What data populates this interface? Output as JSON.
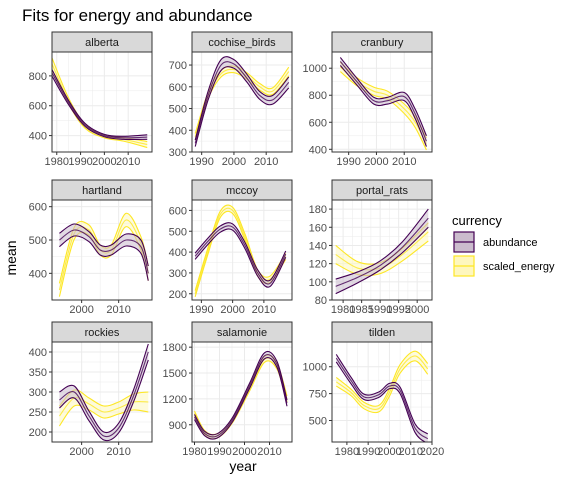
{
  "chart_data": {
    "type": "line",
    "title": "Fits for energy and abundance",
    "xlabel": "year",
    "ylabel": "mean",
    "grid": true,
    "legend": {
      "title": "currency",
      "position": "right",
      "entries": [
        {
          "label": "abundance",
          "color": "#440154",
          "fill": "#cbbccd"
        },
        {
          "label": "scaled_energy",
          "color": "#FDE725",
          "fill": "#fef7be"
        }
      ]
    },
    "panels": [
      {
        "name": "alberta",
        "xlim": [
          1978,
          2020
        ],
        "ylim": [
          290,
          960
        ],
        "xticks": [
          1980,
          1990,
          2000,
          2010
        ],
        "yticks": [
          400,
          600,
          800
        ],
        "series": [
          {
            "name": "abundance",
            "x": [
              1978,
              1985,
              1992,
              2000,
              2008,
              2018
            ],
            "mean": [
              820,
              620,
              470,
              400,
              385,
              390
            ],
            "band": [
              22,
              14,
              10,
              8,
              10,
              15
            ]
          },
          {
            "name": "scaled_energy",
            "x": [
              1978,
              1985,
              1992,
              2000,
              2008,
              2018
            ],
            "mean": [
              880,
              630,
              460,
              395,
              375,
              340
            ],
            "band": [
              40,
              20,
              12,
              10,
              12,
              20
            ]
          }
        ]
      },
      {
        "name": "cochise_birds",
        "xlim": [
          1987,
          2018
        ],
        "ylim": [
          300,
          760
        ],
        "xticks": [
          1990,
          2000,
          2010
        ],
        "yticks": [
          300,
          400,
          500,
          600,
          700
        ],
        "series": [
          {
            "name": "abundance",
            "x": [
              1988,
              1992,
              1996,
              2000,
              2004,
              2008,
              2012,
              2017
            ],
            "mean": [
              340,
              560,
              700,
              705,
              640,
              560,
              540,
              620
            ],
            "band": [
              15,
              20,
              25,
              20,
              18,
              18,
              20,
              25
            ]
          },
          {
            "name": "scaled_energy",
            "x": [
              1988,
              1992,
              1996,
              2000,
              2004,
              2008,
              2012,
              2017
            ],
            "mean": [
              370,
              560,
              660,
              680,
              650,
              600,
              580,
              670
            ],
            "band": [
              15,
              15,
              15,
              15,
              15,
              15,
              15,
              20
            ]
          }
        ]
      },
      {
        "name": "cranbury",
        "xlim": [
          1984,
          2020
        ],
        "ylim": [
          380,
          1120
        ],
        "xticks": [
          1990,
          2000,
          2010
        ],
        "yticks": [
          400,
          600,
          800,
          1000
        ],
        "series": [
          {
            "name": "abundance",
            "x": [
              1987,
              1993,
              1999,
              2004,
              2010,
              2014,
              2018
            ],
            "mean": [
              1050,
              900,
              760,
              760,
              790,
              660,
              460
            ],
            "band": [
              30,
              25,
              25,
              25,
              30,
              35,
              40
            ]
          },
          {
            "name": "scaled_energy",
            "x": [
              1987,
              1993,
              1999,
              2004,
              2010,
              2014,
              2018
            ],
            "mean": [
              1010,
              900,
              830,
              800,
              700,
              600,
              440
            ],
            "band": [
              35,
              30,
              30,
              30,
              35,
              40,
              45
            ]
          }
        ]
      },
      {
        "name": "hartland",
        "xlim": [
          1992,
          2019
        ],
        "ylim": [
          320,
          620
        ],
        "xticks": [
          2000,
          2010
        ],
        "yticks": [
          400,
          500,
          600
        ],
        "series": [
          {
            "name": "abundance",
            "x": [
              1994,
              1998,
              2002,
              2005,
              2008,
              2012,
              2016,
              2018
            ],
            "mean": [
              500,
              530,
              510,
              470,
              470,
              500,
              480,
              400
            ],
            "band": [
              20,
              18,
              15,
              15,
              15,
              18,
              20,
              22
            ]
          },
          {
            "name": "scaled_energy",
            "x": [
              1994,
              1998,
              2002,
              2005,
              2008,
              2012,
              2016,
              2018
            ],
            "mean": [
              350,
              520,
              530,
              470,
              470,
              560,
              490,
              400
            ],
            "band": [
              20,
              18,
              15,
              15,
              15,
              20,
              20,
              22
            ]
          }
        ]
      },
      {
        "name": "mccoy",
        "xlim": [
          1987,
          2019
        ],
        "ylim": [
          170,
          650
        ],
        "xticks": [
          1990,
          2000,
          2010
        ],
        "yticks": [
          200,
          300,
          400,
          500,
          600
        ],
        "series": [
          {
            "name": "abundance",
            "x": [
              1988,
              1992,
              1996,
              2000,
              2004,
              2008,
              2012,
              2017
            ],
            "mean": [
              380,
              450,
              510,
              520,
              430,
              300,
              250,
              390
            ],
            "band": [
              15,
              15,
              15,
              15,
              15,
              15,
              15,
              15
            ]
          },
          {
            "name": "scaled_energy",
            "x": [
              1988,
              1992,
              1996,
              2000,
              2004,
              2008,
              2012,
              2017
            ],
            "mean": [
              200,
              400,
              580,
              600,
              470,
              300,
              270,
              380
            ],
            "band": [
              15,
              15,
              15,
              15,
              15,
              15,
              15,
              15
            ]
          }
        ]
      },
      {
        "name": "portal_rats",
        "xlim": [
          1977,
          2004
        ],
        "ylim": [
          80,
          190
        ],
        "xticks": [
          1980,
          1985,
          1990,
          1995,
          2000
        ],
        "yticks": [
          80,
          100,
          120,
          140,
          160,
          180
        ],
        "series": [
          {
            "name": "abundance",
            "x": [
              1978,
              1984,
              1990,
              1996,
              2003
            ],
            "mean": [
              95,
              105,
              118,
              138,
              170
            ],
            "band": [
              8,
              6,
              5,
              6,
              10
            ]
          },
          {
            "name": "scaled_energy",
            "x": [
              1978,
              1984,
              1990,
              1996,
              2003
            ],
            "mean": [
              130,
              115,
              115,
              130,
              155
            ],
            "band": [
              10,
              7,
              6,
              7,
              10
            ]
          }
        ]
      },
      {
        "name": "rockies",
        "xlim": [
          1992,
          2019
        ],
        "ylim": [
          175,
          425
        ],
        "xticks": [
          2000,
          2010
        ],
        "yticks": [
          200,
          250,
          300,
          350,
          400
        ],
        "series": [
          {
            "name": "abundance",
            "x": [
              1994,
              1998,
              2002,
              2006,
              2010,
              2014,
              2018
            ],
            "mean": [
              280,
              300,
              240,
              190,
              210,
              290,
              400
            ],
            "band": [
              20,
              15,
              12,
              10,
              12,
              15,
              20
            ]
          },
          {
            "name": "scaled_energy",
            "x": [
              1994,
              1998,
              2002,
              2006,
              2010,
              2014,
              2018
            ],
            "mean": [
              240,
              285,
              270,
              250,
              260,
              275,
              275
            ],
            "band": [
              25,
              20,
              15,
              15,
              15,
              20,
              25
            ]
          }
        ]
      },
      {
        "name": "salamonie",
        "xlim": [
          1979,
          2019
        ],
        "ylim": [
          700,
          1860
        ],
        "xticks": [
          1980,
          1990,
          2000,
          2010
        ],
        "yticks": [
          900,
          1200,
          1500,
          1800
        ],
        "series": [
          {
            "name": "abundance",
            "x": [
              1980,
              1984,
              1989,
              1995,
              2002,
              2008,
              2013,
              2017
            ],
            "mean": [
              990,
              800,
              770,
              950,
              1350,
              1700,
              1600,
              1150
            ],
            "band": [
              30,
              25,
              25,
              25,
              30,
              35,
              35,
              35
            ]
          },
          {
            "name": "scaled_energy",
            "x": [
              1980,
              1984,
              1989,
              1995,
              2002,
              2008,
              2013,
              2017
            ],
            "mean": [
              1030,
              810,
              770,
              940,
              1320,
              1660,
              1580,
              1200
            ],
            "band": [
              30,
              25,
              25,
              25,
              30,
              35,
              35,
              35
            ]
          }
        ]
      },
      {
        "name": "tilden",
        "xlim": [
          1973,
          2020
        ],
        "ylim": [
          300,
          1230
        ],
        "xticks": [
          1980,
          1990,
          2000,
          2010,
          2020
        ],
        "yticks": [
          500,
          750,
          1000
        ],
        "series": [
          {
            "name": "abundance",
            "x": [
              1975,
              1982,
              1988,
              1995,
              2000,
              2005,
              2012,
              2018
            ],
            "mean": [
              1080,
              870,
              720,
              740,
              820,
              780,
              430,
              330
            ],
            "band": [
              35,
              30,
              25,
              25,
              25,
              30,
              40,
              45
            ]
          },
          {
            "name": "scaled_energy",
            "x": [
              1975,
              1982,
              1988,
              1995,
              2000,
              2005,
              2012,
              2018
            ],
            "mean": [
              860,
              760,
              640,
              610,
              760,
              980,
              1100,
              980
            ],
            "band": [
              40,
              30,
              30,
              30,
              35,
              40,
              45,
              50
            ]
          }
        ]
      }
    ]
  }
}
